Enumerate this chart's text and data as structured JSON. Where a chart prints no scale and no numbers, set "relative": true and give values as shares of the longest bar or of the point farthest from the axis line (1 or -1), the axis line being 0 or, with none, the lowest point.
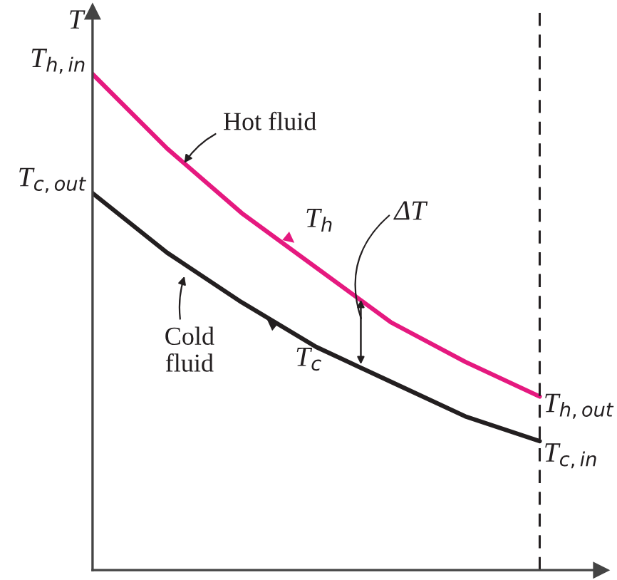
{
  "chart_data": {
    "type": "line",
    "relative": true,
    "ylabel": "T",
    "marker": "none",
    "line_style": "solid",
    "categories": [
      null,
      null,
      null,
      null,
      null,
      null,
      null
    ],
    "series": [
      {
        "name": "Hot fluid",
        "color": "#e5197f",
        "values": [
          1.0,
          0.85,
          0.72,
          0.61,
          0.5,
          0.42,
          0.35
        ]
      },
      {
        "name": "Cold\nfluid",
        "color": "#231f20",
        "values": [
          0.76,
          0.64,
          0.54,
          0.45,
          0.38,
          0.31,
          0.26
        ]
      }
    ],
    "annotations": [
      "T$_{h,in}$",
      "T$_{c,out}$",
      "T$_{h,out}$",
      "T$_{c,in}$",
      "T$_{h}$",
      "T$_{c}$",
      "ΔT"
    ]
  }
}
